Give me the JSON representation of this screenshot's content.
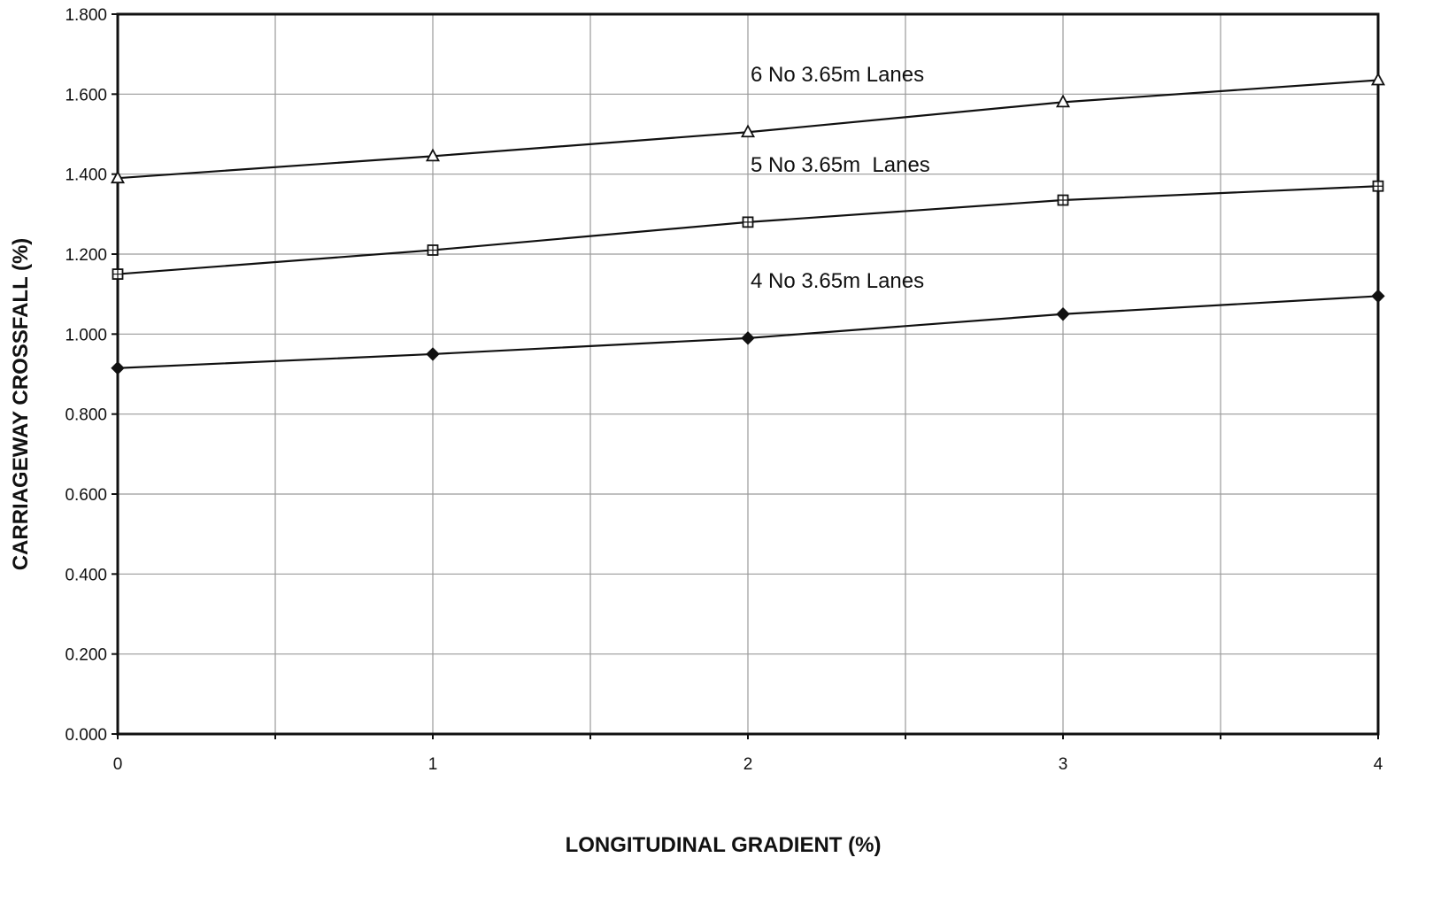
{
  "chart_data": {
    "type": "line",
    "xlabel": "LONGITUDINAL GRADIENT (%)",
    "ylabel": "CARRIAGEWAY CROSSFALL (%)",
    "xlim": [
      0,
      4
    ],
    "ylim": [
      0,
      1.8
    ],
    "x_ticks": [
      "0",
      "1",
      "2",
      "3",
      "4"
    ],
    "y_ticks": [
      "0.000",
      "0.200",
      "0.400",
      "0.600",
      "0.800",
      "1.000",
      "1.200",
      "1.400",
      "1.600",
      "1.800"
    ],
    "grid": true,
    "x": [
      0,
      1,
      2,
      3,
      4
    ],
    "series": [
      {
        "name": "6 No 3.65m Lanes",
        "marker": "triangle",
        "values": [
          1.39,
          1.445,
          1.505,
          1.58,
          1.635
        ]
      },
      {
        "name": "5 No 3.65m  Lanes",
        "marker": "square",
        "values": [
          1.15,
          1.21,
          1.28,
          1.335,
          1.37
        ]
      },
      {
        "name": "4 No 3.65m Lanes",
        "marker": "diamond",
        "values": [
          0.915,
          0.95,
          0.99,
          1.05,
          1.095
        ]
      }
    ],
    "colors": {
      "line": "#111111",
      "grid": "#9a9a9a",
      "frame": "#111111"
    }
  }
}
